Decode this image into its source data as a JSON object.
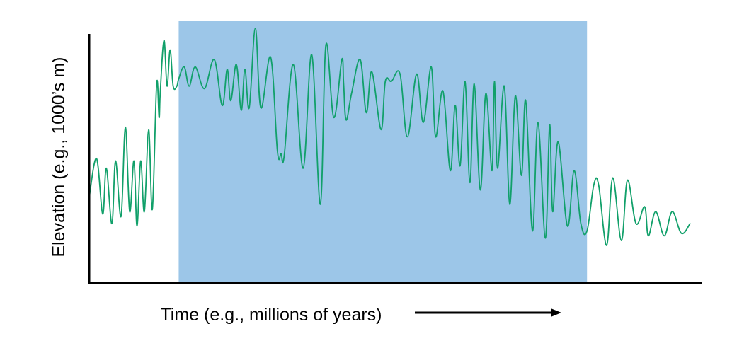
{
  "chart_data": {
    "type": "line",
    "title": "",
    "xlabel": "Time (e.g., millions of years)",
    "ylabel": "Elevation (e.g., 1000’s m)",
    "tick_labels_shown": false,
    "grid": false,
    "legend": "none",
    "line_color": "#11a06a",
    "highlight_color": "#9cc6e8",
    "xlim": [
      0,
      100
    ],
    "ylim": [
      0,
      100
    ],
    "highlight_x_range": [
      14.6,
      81.2
    ],
    "series": [
      {
        "x": [
          0,
          1.2,
          2.2,
          2.8,
          3.7,
          4.3,
          5.2,
          5.9,
          6.6,
          7.3,
          7.8,
          8.4,
          9.0,
          9.7,
          10.3,
          11.0,
          11.4,
          11.6,
          12.2,
          12.7,
          13.2,
          13.7,
          14.3,
          14.6,
          15.5,
          16.3,
          17.3,
          18.8,
          20.4,
          21.7,
          22.5,
          23.1,
          24.0,
          24.8,
          25.4,
          26.1,
          27.1,
          28.0,
          29.6,
          30.7,
          31.3,
          31.8,
          33.3,
          34.9,
          36.3,
          37.7,
          38.6,
          39.9,
          41.2,
          41.5,
          41.9,
          42.8,
          44.2,
          45.2,
          46.1,
          47.6,
          48.3,
          49.3,
          50.7,
          51.9,
          53.4,
          54.5,
          55.8,
          56.5,
          57.7,
          58.9,
          59.7,
          60.5,
          61.3,
          62.1,
          62.8,
          63.8,
          64.7,
          65.7,
          66.1,
          66.6,
          67.7,
          68.6,
          69.5,
          70.5,
          71.2,
          72.3,
          73.2,
          74.4,
          75.1,
          75.6,
          76.5,
          78.0,
          79.1,
          80.2,
          81.2,
          82.3,
          83.1,
          84.4,
          85.4,
          86.8,
          87.8,
          89.2,
          90.6,
          91.2,
          92.4,
          93.8,
          95.1,
          96.6,
          98.0
        ],
        "y": [
          30,
          46,
          23,
          42,
          19,
          45,
          22,
          59,
          24,
          45,
          18,
          45,
          24,
          58,
          25,
          77,
          63,
          74,
          95,
          76,
          91,
          76,
          76,
          79,
          84,
          76,
          84,
          75,
          87,
          68,
          83,
          70,
          85,
          66,
          83,
          67,
          100,
          67,
          88,
          49,
          48,
          47,
          85,
          42,
          89,
          27,
          93,
          63,
          87,
          77,
          62,
          73,
          87,
          65,
          82,
          58,
          78,
          78,
          81,
          55,
          81,
          61,
          84,
          55,
          74,
          41,
          68,
          43,
          78,
          36,
          77,
          33,
          73,
          41,
          78,
          42,
          76,
          27,
          72,
          39,
          70,
          16,
          61,
          13,
          60,
          24,
          53,
          18,
          41,
          19,
          16,
          35,
          35,
          10,
          38,
          12,
          37,
          19,
          26,
          14,
          24,
          14,
          24,
          15,
          19
        ]
      }
    ]
  }
}
